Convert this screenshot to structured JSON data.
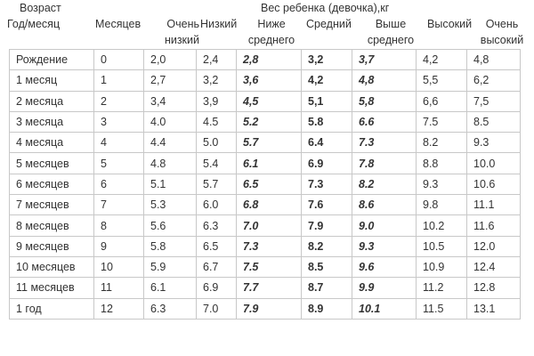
{
  "header": {
    "age_group": "Возраст",
    "age": "Год/месяц",
    "months": "Месяцев",
    "weight_title": "Вес ребенка (девочка),кг",
    "very_low": [
      "Очень",
      "низкий"
    ],
    "low": "Низкий",
    "below_avg": [
      "Ниже",
      "среднего"
    ],
    "average": "Средний",
    "above_avg": [
      "Выше",
      "среднего"
    ],
    "high": "Высокий",
    "very_high": [
      "Очень",
      "высокий"
    ]
  },
  "rows": [
    [
      "Рождение",
      "0",
      "2,0",
      "2,4",
      "2,8",
      "3,2",
      "3,7",
      "4,2",
      "4,8"
    ],
    [
      "1 месяц",
      "1",
      "2,7",
      "3,2",
      "3,6",
      "4,2",
      "4,8",
      "5,5",
      "6,2"
    ],
    [
      "2 месяца",
      "2",
      "3,4",
      "3,9",
      "4,5",
      "5,1",
      "5,8",
      "6,6",
      "7,5"
    ],
    [
      "3 месяца",
      "3",
      "4.0",
      "4.5",
      "5.2",
      "5.8",
      "6.6",
      "7.5",
      "8.5"
    ],
    [
      "4 месяца",
      "4",
      "4.4",
      "5.0",
      "5.7",
      "6.4",
      "7.3",
      "8.2",
      "9.3"
    ],
    [
      "5 месяцев",
      "5",
      "4.8",
      "5.4",
      "6.1",
      "6.9",
      "7.8",
      "8.8",
      "10.0"
    ],
    [
      "6 месяцев",
      "6",
      "5.1",
      "5.7",
      "6.5",
      "7.3",
      "8.2",
      "9.3",
      "10.6"
    ],
    [
      "7 месяцев",
      "7",
      "5.3",
      "6.0",
      "6.8",
      "7.6",
      "8.6",
      "9.8",
      "11.1"
    ],
    [
      "8 месяцев",
      "8",
      "5.6",
      "6.3",
      "7.0",
      "7.9",
      "9.0",
      "10.2",
      "11.6"
    ],
    [
      "9 месяцев",
      "9",
      "5.8",
      "6.5",
      "7.3",
      "8.2",
      "9.3",
      "10.5",
      "12.0"
    ],
    [
      "10 месяцев",
      "10",
      "5.9",
      "6.7",
      "7.5",
      "8.5",
      "9.6",
      "10.9",
      "12.4"
    ],
    [
      "11 месяцев",
      "11",
      "6.1",
      "6.9",
      "7.7",
      "8.7",
      "9.9",
      "11.2",
      "12.8"
    ],
    [
      "1 год",
      "12",
      "6.3",
      "7.0",
      "7.9",
      "8.9",
      "10.1",
      "11.5",
      "13.1"
    ]
  ]
}
